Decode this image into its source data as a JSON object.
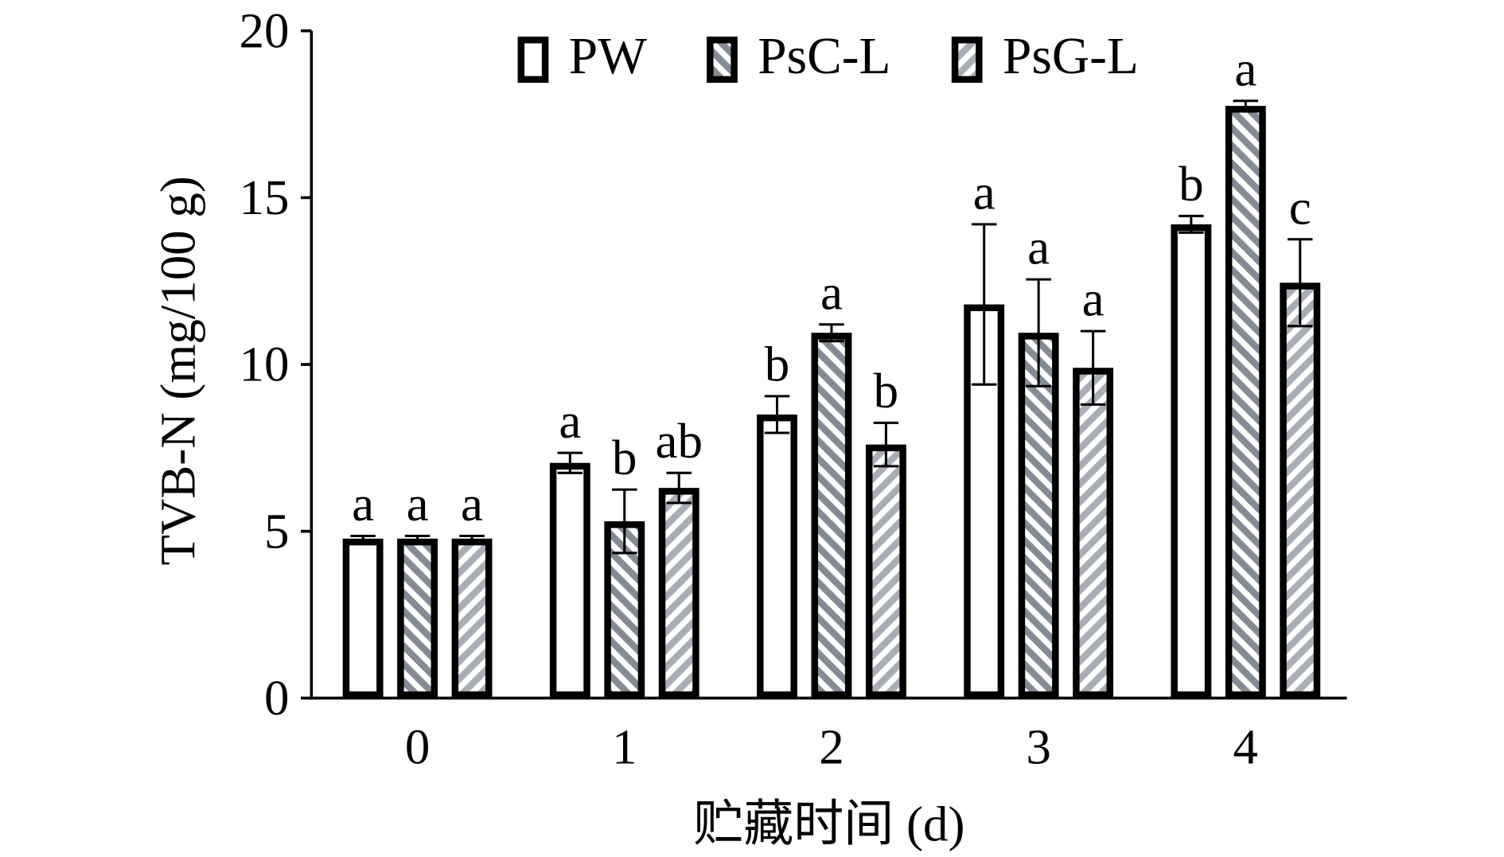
{
  "chart_data": {
    "type": "bar",
    "categories": [
      "0",
      "1",
      "2",
      "3",
      "4"
    ],
    "xlabel": "贮藏时间 (d)",
    "ylabel": "TVB-N (mg/100 g)",
    "ylim": [
      0,
      20
    ],
    "yticks": [
      0,
      5,
      10,
      15,
      20
    ],
    "grid": false,
    "legend_position": "top",
    "series": [
      {
        "name": "PW",
        "color": "#ffffff",
        "values": [
          4.78,
          7.05,
          8.5,
          11.8,
          14.2
        ],
        "errors": [
          0.08,
          0.3,
          0.55,
          2.4,
          0.25
        ],
        "labels": [
          "a",
          "a",
          "b",
          "a",
          "b"
        ]
      },
      {
        "name": "PsC-L",
        "color": "#858b95",
        "values": [
          4.78,
          5.3,
          10.95,
          10.95,
          17.75
        ],
        "errors": [
          0.08,
          0.95,
          0.25,
          1.6,
          0.15
        ],
        "labels": [
          "a",
          "b",
          "a",
          "a",
          "a"
        ]
      },
      {
        "name": "PsG-L",
        "color": "#a9aeb6",
        "values": [
          4.78,
          6.3,
          7.6,
          9.9,
          12.45
        ],
        "errors": [
          0.08,
          0.45,
          0.65,
          1.1,
          1.3
        ],
        "labels": [
          "a",
          "ab",
          "b",
          "a",
          "c"
        ]
      }
    ]
  }
}
